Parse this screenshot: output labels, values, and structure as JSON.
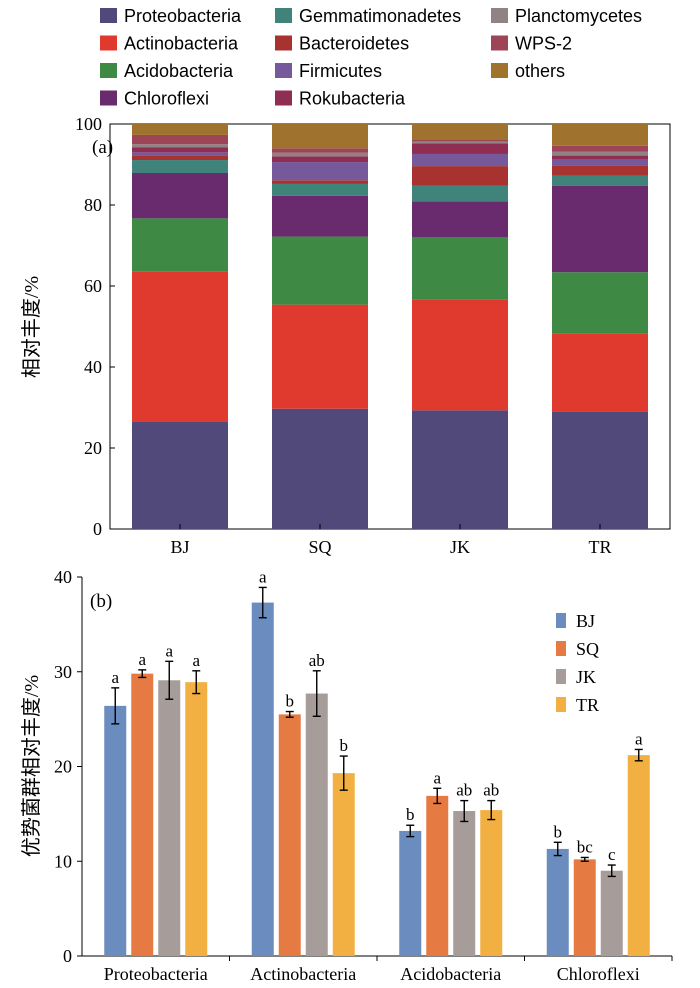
{
  "chart_data": [
    {
      "type": "bar",
      "stacked": true,
      "panel_label": "(a)",
      "ylabel": "相对丰度/%",
      "ylim": [
        0,
        100
      ],
      "yticks": [
        "0",
        "20",
        "40",
        "60",
        "80",
        "100"
      ],
      "categories": [
        "BJ",
        "SQ",
        "JK",
        "TR"
      ],
      "legend_position": "top",
      "series": [
        {
          "name": "Proteobacteria",
          "color": "#50497a",
          "values": [
            26.6,
            29.7,
            29.3,
            28.9
          ]
        },
        {
          "name": "Actinobacteria",
          "color": "#e03a2f",
          "values": [
            36.9,
            25.7,
            27.4,
            19.4
          ]
        },
        {
          "name": "Acidobacteria",
          "color": "#3e8a45",
          "values": [
            13.2,
            16.8,
            15.4,
            15.1
          ]
        },
        {
          "name": "Chloroflexi",
          "color": "#6a2a6e",
          "values": [
            11.2,
            10.1,
            8.8,
            21.3
          ]
        },
        {
          "name": "Gemmatimonadetes",
          "color": "#3f837b",
          "values": [
            3.2,
            2.9,
            3.9,
            2.5
          ]
        },
        {
          "name": "Bacteroidetes",
          "color": "#a7322f",
          "values": [
            1.1,
            0.9,
            4.8,
            2.6
          ]
        },
        {
          "name": "Firmicutes",
          "color": "#76599a",
          "values": [
            0.8,
            4.5,
            3.0,
            1.4
          ]
        },
        {
          "name": "Rokubacteria",
          "color": "#8f2d52",
          "values": [
            1.2,
            1.4,
            2.6,
            1.0
          ]
        },
        {
          "name": "Planctomycetes",
          "color": "#8f8384",
          "values": [
            0.8,
            0.9,
            0.5,
            1.0
          ]
        },
        {
          "name": "WPS-2",
          "color": "#9d4457",
          "values": [
            2.3,
            1.1,
            0.5,
            1.4
          ]
        },
        {
          "name": "others",
          "color": "#9f722e",
          "values": [
            2.7,
            6.0,
            3.8,
            5.4
          ]
        }
      ]
    },
    {
      "type": "bar",
      "panel_label": "(b)",
      "ylabel": "优势菌群相对丰度/%",
      "ylim": [
        0,
        40
      ],
      "yticks": [
        "0",
        "10",
        "20",
        "30",
        "40"
      ],
      "categories": [
        "Proteobacteria",
        "Actinobacteria",
        "Acidobacteria",
        "Chloroflexi"
      ],
      "legend_position": "top-right",
      "series": [
        {
          "name": "BJ",
          "color": "#6b8cbe",
          "values": [
            26.4,
            37.3,
            13.2,
            11.3
          ],
          "errors": [
            1.9,
            1.6,
            0.6,
            0.7
          ],
          "labels": [
            "a",
            "a",
            "b",
            "b"
          ]
        },
        {
          "name": "SQ",
          "color": "#e57a43",
          "values": [
            29.8,
            25.5,
            16.9,
            10.2
          ],
          "errors": [
            0.4,
            0.3,
            0.8,
            0.2
          ],
          "labels": [
            "a",
            "b",
            "a",
            "bc"
          ]
        },
        {
          "name": "JK",
          "color": "#a69c99",
          "values": [
            29.1,
            27.7,
            15.3,
            9.0
          ],
          "errors": [
            2.0,
            2.4,
            1.1,
            0.6
          ],
          "labels": [
            "a",
            "ab",
            "ab",
            "c"
          ]
        },
        {
          "name": "TR",
          "color": "#f2b042",
          "values": [
            28.9,
            19.3,
            15.4,
            21.2
          ],
          "errors": [
            1.2,
            1.8,
            1.0,
            0.6
          ],
          "labels": [
            "a",
            "b",
            "ab",
            "a"
          ]
        }
      ]
    }
  ]
}
